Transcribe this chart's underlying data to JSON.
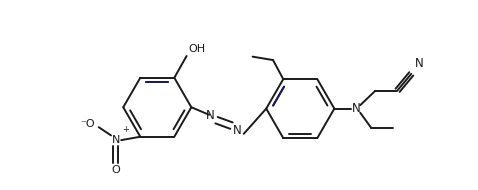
{
  "bg_color": "#ffffff",
  "line_color": "#1a1a1a",
  "dark_blue_bond": "#1a1a6e",
  "figsize": [
    4.78,
    1.9
  ],
  "dpi": 100,
  "lw": 1.4,
  "xlim": [
    -1.2,
    5.8
  ],
  "ylim": [
    -0.75,
    1.35
  ]
}
